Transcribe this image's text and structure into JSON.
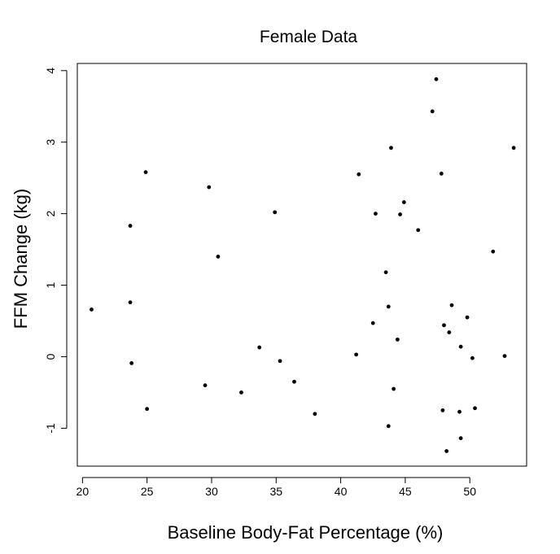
{
  "chart_data": {
    "type": "scatter",
    "title": "Female Data",
    "xlabel": "Baseline Body-Fat Percentage (%)",
    "ylabel": "FFM Change (kg)",
    "xlim": [
      19.6,
      54.4
    ],
    "ylim": [
      -1.53,
      4.1
    ],
    "xticks": [
      20,
      25,
      30,
      35,
      40,
      45,
      50
    ],
    "yticks": [
      -1,
      0,
      1,
      2,
      3,
      4
    ],
    "xtick_labels": [
      "20",
      "25",
      "30",
      "35",
      "40",
      "45",
      "50"
    ],
    "ytick_labels": [
      "-1",
      "0",
      "1",
      "2",
      "3",
      "4"
    ],
    "grid": false,
    "points": [
      {
        "x": 20.7,
        "y": 0.66
      },
      {
        "x": 23.7,
        "y": 1.83
      },
      {
        "x": 23.7,
        "y": 0.76
      },
      {
        "x": 23.8,
        "y": -0.09
      },
      {
        "x": 24.9,
        "y": 2.58
      },
      {
        "x": 25.0,
        "y": -0.73
      },
      {
        "x": 29.5,
        "y": -0.4
      },
      {
        "x": 29.8,
        "y": 2.37
      },
      {
        "x": 30.5,
        "y": 1.4
      },
      {
        "x": 32.3,
        "y": -0.5
      },
      {
        "x": 33.7,
        "y": 0.13
      },
      {
        "x": 34.9,
        "y": 2.02
      },
      {
        "x": 35.3,
        "y": -0.06
      },
      {
        "x": 36.4,
        "y": -0.35
      },
      {
        "x": 38.0,
        "y": -0.8
      },
      {
        "x": 41.2,
        "y": 0.03
      },
      {
        "x": 41.4,
        "y": 2.55
      },
      {
        "x": 42.5,
        "y": 0.47
      },
      {
        "x": 42.7,
        "y": 2.0
      },
      {
        "x": 43.5,
        "y": 1.18
      },
      {
        "x": 43.7,
        "y": 0.7
      },
      {
        "x": 43.7,
        "y": -0.97
      },
      {
        "x": 43.9,
        "y": 2.92
      },
      {
        "x": 44.1,
        "y": -0.45
      },
      {
        "x": 44.4,
        "y": 0.24
      },
      {
        "x": 44.6,
        "y": 1.99
      },
      {
        "x": 44.9,
        "y": 2.16
      },
      {
        "x": 46.0,
        "y": 1.77
      },
      {
        "x": 47.1,
        "y": 3.43
      },
      {
        "x": 47.4,
        "y": 3.88
      },
      {
        "x": 47.8,
        "y": 2.56
      },
      {
        "x": 47.9,
        "y": -0.75
      },
      {
        "x": 48.0,
        "y": 0.44
      },
      {
        "x": 48.2,
        "y": -1.32
      },
      {
        "x": 48.4,
        "y": 0.34
      },
      {
        "x": 48.6,
        "y": 0.72
      },
      {
        "x": 49.2,
        "y": -0.77
      },
      {
        "x": 49.3,
        "y": 0.14
      },
      {
        "x": 49.3,
        "y": -1.14
      },
      {
        "x": 49.8,
        "y": 0.55
      },
      {
        "x": 50.2,
        "y": -0.02
      },
      {
        "x": 50.4,
        "y": -0.72
      },
      {
        "x": 51.8,
        "y": 1.47
      },
      {
        "x": 52.7,
        "y": 0.01
      },
      {
        "x": 53.4,
        "y": 2.92
      }
    ]
  }
}
